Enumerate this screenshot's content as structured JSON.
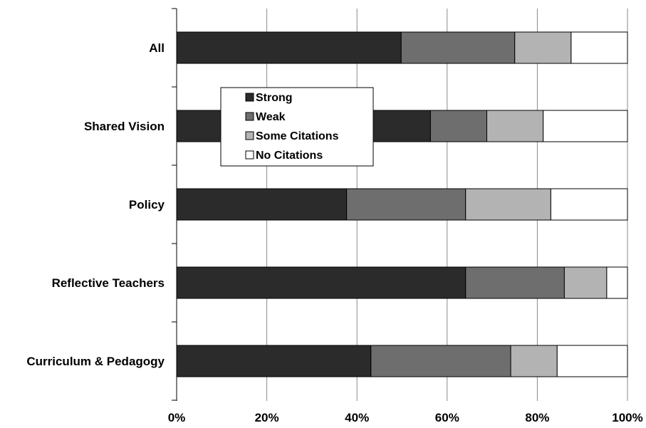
{
  "chart_data": {
    "type": "bar",
    "orientation": "horizontal",
    "stacked": true,
    "categories": [
      "All",
      "Shared Vision",
      "Policy",
      "Reflective Teachers",
      "Curriculum & Pedagogy"
    ],
    "series": [
      {
        "name": "Strong",
        "values": [
          49.8,
          56.3,
          37.7,
          64.1,
          43.1
        ],
        "color": "#2b2b2b"
      },
      {
        "name": "Weak",
        "values": [
          25.2,
          12.5,
          26.4,
          21.9,
          31.0
        ],
        "color": "#6e6e6e"
      },
      {
        "name": "Some Citations",
        "values": [
          12.5,
          12.5,
          18.9,
          9.4,
          10.3
        ],
        "color": "#b3b3b3"
      },
      {
        "name": "No Citations",
        "values": [
          12.5,
          18.7,
          17.0,
          4.6,
          15.6
        ],
        "color": "#ffffff"
      }
    ],
    "xlim": [
      0,
      100
    ],
    "x_ticks": [
      "0%",
      "20%",
      "40%",
      "60%",
      "80%",
      "100%"
    ],
    "grid": "vertical",
    "legend_position": "top-left inside plot",
    "title": "",
    "xlabel": "",
    "ylabel": ""
  }
}
